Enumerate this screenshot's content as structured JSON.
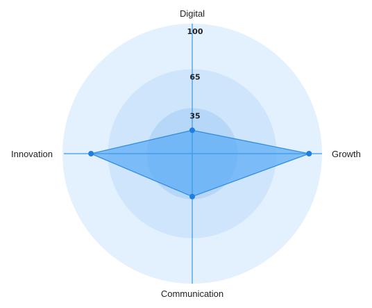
{
  "chart_data": {
    "type": "radar",
    "axes": [
      "Digital",
      "Growth",
      "Communication",
      "Innovation"
    ],
    "ticks": [
      35,
      65,
      100
    ],
    "range": [
      0,
      100
    ],
    "series": [
      {
        "values": [
          18,
          90,
          33,
          78
        ]
      }
    ],
    "colors": {
      "ring_outer": "#e3f0fd",
      "ring_middle": "#cfe5fb",
      "ring_inner": "#b6d7f8",
      "axis_line": "#3a98e6",
      "series_fill": "#5aaaf5",
      "series_stroke": "#2f8fe3",
      "point": "#1f7fe0"
    }
  }
}
